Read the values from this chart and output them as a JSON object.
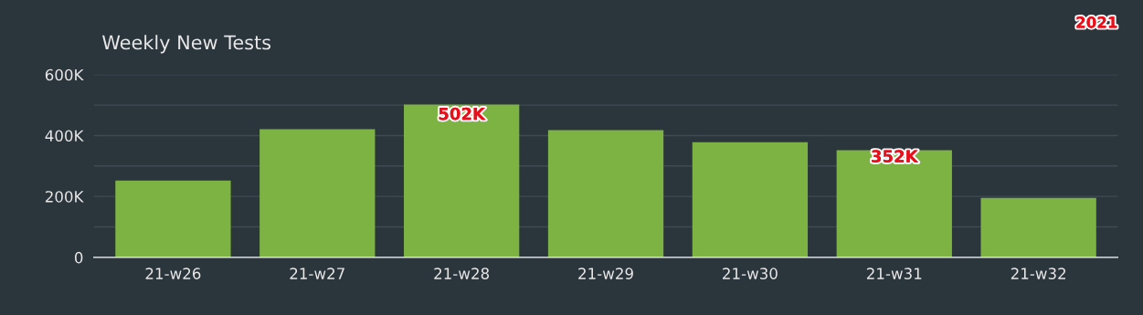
{
  "chart_data": {
    "type": "bar",
    "title": "Weekly New Tests",
    "categories": [
      "21-w26",
      "21-w27",
      "21-w28",
      "21-w29",
      "21-w30",
      "21-w31",
      "21-w32"
    ],
    "values": [
      252000,
      421000,
      502000,
      418000,
      378000,
      352000,
      195000
    ],
    "value_labels": [
      null,
      null,
      "502K",
      null,
      null,
      "352K",
      null
    ],
    "color": "#7cb342",
    "ylim": [
      0,
      600000
    ],
    "yticks": [
      0,
      {
        "value": 100000,
        "label": null
      },
      {
        "value": 200000,
        "label": "200K"
      },
      {
        "value": 300000,
        "label": null
      },
      {
        "value": 400000,
        "label": "400K"
      },
      {
        "value": 500000,
        "label": null
      },
      {
        "value": 600000,
        "label": "600K"
      }
    ],
    "grid": "y",
    "annotations": [
      "2021"
    ]
  }
}
